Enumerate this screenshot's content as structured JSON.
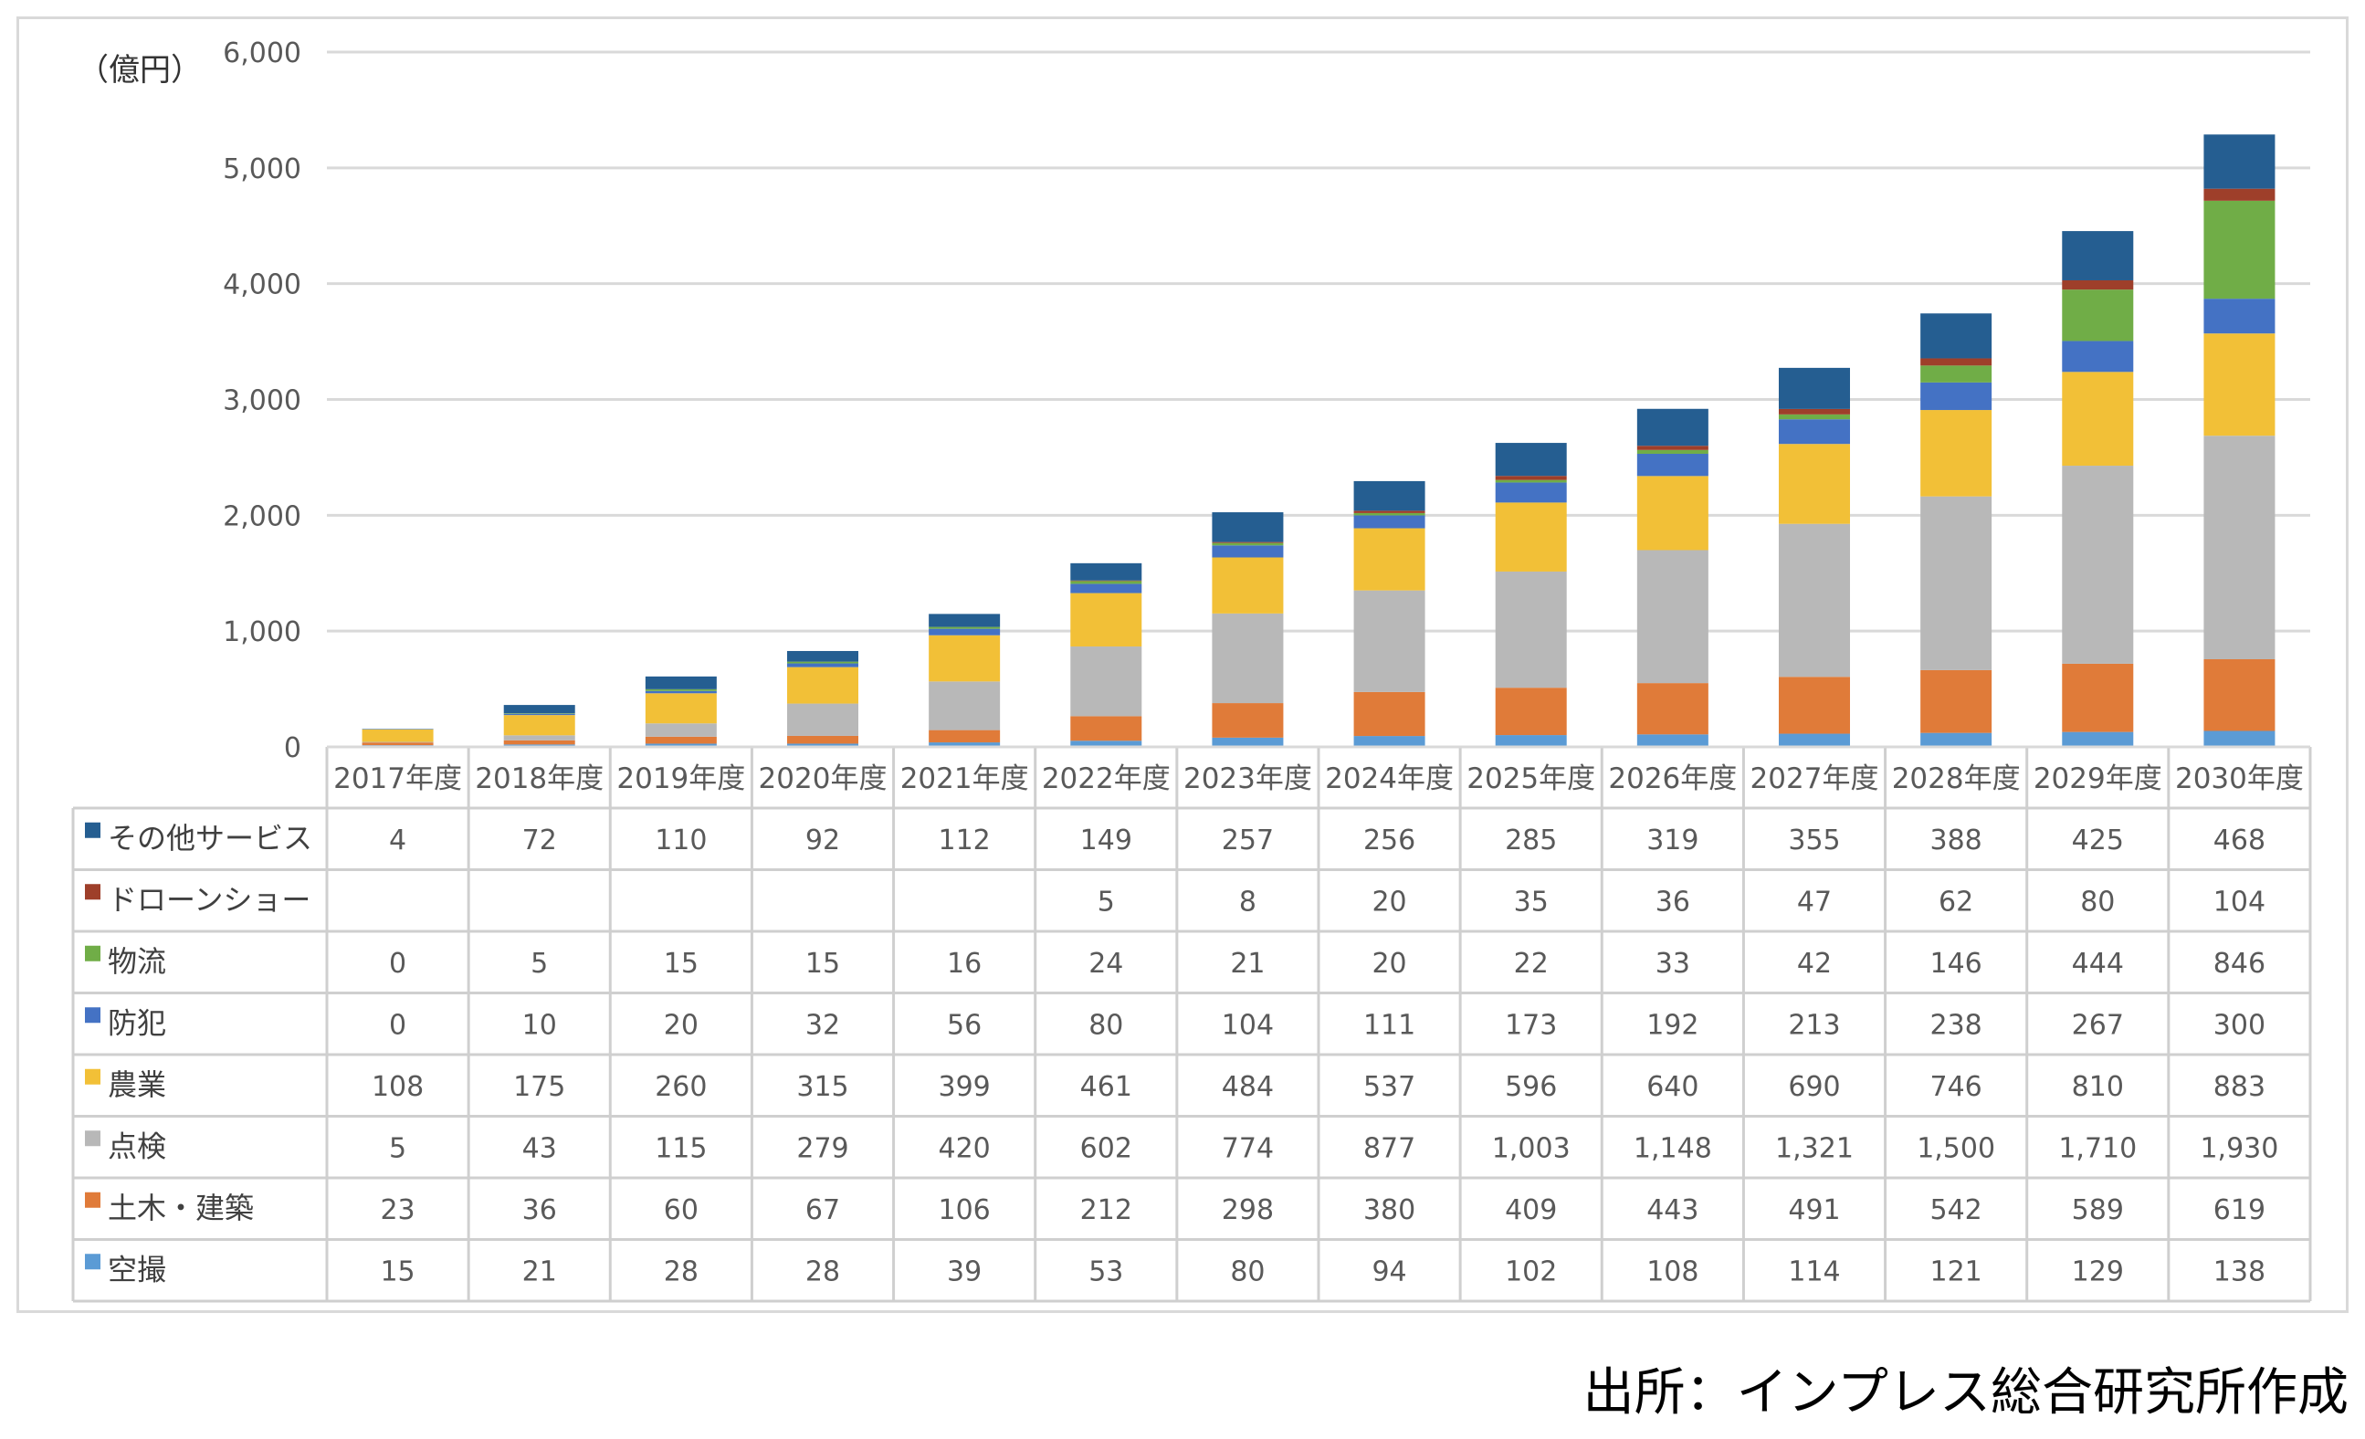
{
  "source_text": "出所：インプレス総合研究所作成",
  "chart_data": {
    "type": "bar",
    "stacked": true,
    "unit_label": "（億円）",
    "ylim": [
      0,
      6000
    ],
    "yticks": [
      "0",
      "1,000",
      "2,000",
      "3,000",
      "4,000",
      "5,000",
      "6,000"
    ],
    "grid": true,
    "legend": "data-table rows",
    "categories": [
      "2017年度",
      "2018年度",
      "2019年度",
      "2020年度",
      "2021年度",
      "2022年度",
      "2023年度",
      "2024年度",
      "2025年度",
      "2026年度",
      "2027年度",
      "2028年度",
      "2029年度",
      "2030年度"
    ],
    "series": [
      {
        "name": "空撮",
        "color": "#5b9bd5",
        "values": [
          15,
          21,
          28,
          28,
          39,
          53,
          80,
          94,
          102,
          108,
          114,
          121,
          129,
          138
        ],
        "labels": [
          "15",
          "21",
          "28",
          "28",
          "39",
          "53",
          "80",
          "94",
          "102",
          "108",
          "114",
          "121",
          "129",
          "138"
        ]
      },
      {
        "name": "土木・建築",
        "color": "#e07b39",
        "values": [
          23,
          36,
          60,
          67,
          106,
          212,
          298,
          380,
          409,
          443,
          491,
          542,
          589,
          619
        ],
        "labels": [
          "23",
          "36",
          "60",
          "67",
          "106",
          "212",
          "298",
          "380",
          "409",
          "443",
          "491",
          "542",
          "589",
          "619"
        ]
      },
      {
        "name": "点検",
        "color": "#b8b8b8",
        "values": [
          5,
          43,
          115,
          279,
          420,
          602,
          774,
          877,
          1003,
          1148,
          1321,
          1500,
          1710,
          1930
        ],
        "labels": [
          "5",
          "43",
          "115",
          "279",
          "420",
          "602",
          "774",
          "877",
          "1,003",
          "1,148",
          "1,321",
          "1,500",
          "1,710",
          "1,930"
        ]
      },
      {
        "name": "農業",
        "color": "#f2c037",
        "values": [
          108,
          175,
          260,
          315,
          399,
          461,
          484,
          537,
          596,
          640,
          690,
          746,
          810,
          883
        ],
        "labels": [
          "108",
          "175",
          "260",
          "315",
          "399",
          "461",
          "484",
          "537",
          "596",
          "640",
          "690",
          "746",
          "810",
          "883"
        ]
      },
      {
        "name": "防犯",
        "color": "#4472c4",
        "values": [
          0,
          10,
          20,
          32,
          56,
          80,
          104,
          111,
          173,
          192,
          213,
          238,
          267,
          300
        ],
        "labels": [
          "0",
          "10",
          "20",
          "32",
          "56",
          "80",
          "104",
          "111",
          "173",
          "192",
          "213",
          "238",
          "267",
          "300"
        ]
      },
      {
        "name": "物流",
        "color": "#70ad47",
        "values": [
          0,
          5,
          15,
          15,
          16,
          24,
          21,
          20,
          22,
          33,
          42,
          146,
          444,
          846
        ],
        "labels": [
          "0",
          "5",
          "15",
          "15",
          "16",
          "24",
          "21",
          "20",
          "22",
          "33",
          "42",
          "146",
          "444",
          "846"
        ]
      },
      {
        "name": "ドローンショー",
        "color": "#9e3f2a",
        "values": [
          null,
          null,
          null,
          null,
          null,
          5,
          8,
          20,
          35,
          36,
          47,
          62,
          80,
          104
        ],
        "labels": [
          "",
          "",
          "",
          "",
          "",
          "5",
          "8",
          "20",
          "35",
          "36",
          "47",
          "62",
          "80",
          "104"
        ]
      },
      {
        "name": "その他サービス",
        "color": "#255e91",
        "values": [
          4,
          72,
          110,
          92,
          112,
          149,
          257,
          256,
          285,
          319,
          355,
          388,
          425,
          468
        ],
        "labels": [
          "4",
          "72",
          "110",
          "92",
          "112",
          "149",
          "257",
          "256",
          "285",
          "319",
          "355",
          "388",
          "425",
          "468"
        ]
      }
    ]
  }
}
